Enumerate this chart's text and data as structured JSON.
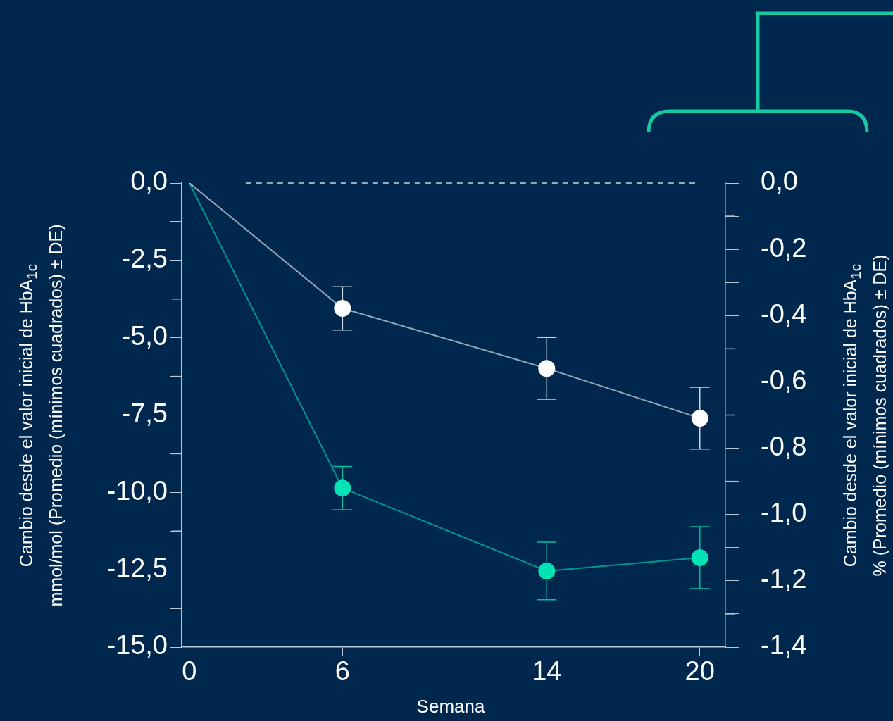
{
  "chart_data": {
    "type": "line",
    "xlabel": "Semana",
    "ylabel": "Cambio desde el valor inicial de HbA$_{1c}$\nmmol/mol (Promedio (mínimos cuadrados) ± DE)",
    "y2label": "Cambio desde el valor inicial de HbA$_{1c}$\n% (Promedio (mínimos cuadrados) ± DE)",
    "x": [
      0,
      6,
      14,
      20
    ],
    "xlim": [
      -0.3,
      21
    ],
    "xticks": [
      0,
      6,
      14,
      20
    ],
    "ylim": [
      -15,
      0
    ],
    "yticks": [
      {
        "value": 0,
        "label": "0,0"
      },
      {
        "value": -1.25,
        "label": null
      },
      {
        "value": -2.5,
        "label": "-2,5"
      },
      {
        "value": -3.75,
        "label": null
      },
      {
        "value": -5,
        "label": "-5,0"
      },
      {
        "value": -6.25,
        "label": null
      },
      {
        "value": -7.5,
        "label": "-7,5"
      },
      {
        "value": -8.75,
        "label": null
      },
      {
        "value": -10,
        "label": "-10,0"
      },
      {
        "value": -11.25,
        "label": null
      },
      {
        "value": -12.5,
        "label": "-12,5"
      },
      {
        "value": -13.75,
        "label": null
      },
      {
        "value": -15,
        "label": "-15,0"
      }
    ],
    "y2lim": [
      -1.4,
      0
    ],
    "y2ticks": [
      {
        "value": 0,
        "label": "0,0"
      },
      {
        "value": -0.1,
        "label": null
      },
      {
        "value": -0.2,
        "label": "-0,2"
      },
      {
        "value": -0.3,
        "label": null
      },
      {
        "value": -0.4,
        "label": "-0,4"
      },
      {
        "value": -0.5,
        "label": null
      },
      {
        "value": -0.6,
        "label": "-0,6"
      },
      {
        "value": -0.7,
        "label": null
      },
      {
        "value": -0.8,
        "label": "-0,8"
      },
      {
        "value": -0.9,
        "label": null
      },
      {
        "value": -1.0,
        "label": "-1,0"
      },
      {
        "value": -1.1,
        "label": null
      },
      {
        "value": -1.2,
        "label": "-1,2"
      },
      {
        "value": -1.3,
        "label": null
      },
      {
        "value": -1.4,
        "label": "-1,4"
      }
    ],
    "series": [
      {
        "color": "#ffffff",
        "values": [
          0,
          -4.05,
          -5.99,
          -7.6
        ],
        "errors": [
          null,
          0.7,
          1.0,
          1.0
        ]
      },
      {
        "color": "#00e3b5",
        "values": [
          0,
          -9.86,
          -12.54,
          -12.11
        ],
        "errors": [
          null,
          0.7,
          0.93,
          1.0
        ]
      }
    ],
    "ref_lines": [
      {
        "axis": "y",
        "value": 0,
        "color": "#c8d4e0",
        "line_style": "dashed"
      }
    ],
    "marker": "circle",
    "line_style": "solid",
    "grid": false,
    "legend": false
  }
}
